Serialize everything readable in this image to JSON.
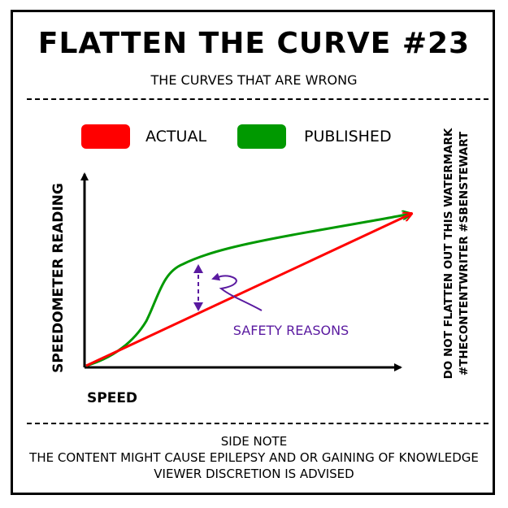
{
  "header": {
    "title": "FLATTEN THE CURVE #23",
    "subtitle": "THE CURVES THAT ARE WRONG"
  },
  "chart_data": {
    "type": "line",
    "xlabel": "SPEED",
    "ylabel": "SPEEDOMETER READING",
    "series": [
      {
        "name": "ACTUAL",
        "color": "#ff0000"
      },
      {
        "name": "PUBLISHED",
        "color": "#009900"
      }
    ],
    "annotations": [
      {
        "text": "SAFETY REASONS",
        "color": "#5a1aa0"
      }
    ],
    "legend_position": "top"
  },
  "watermark": {
    "line1": "DO NOT FLATTEN OUT THIS WATERMARK",
    "line2": "#THECONTENTWRITER #SBENSTEWART"
  },
  "footer": {
    "line1": "SIDE NOTE",
    "line2": "THE CONTENT MIGHT CAUSE EPILEPSY AND OR GAINING OF KNOWLEDGE",
    "line3": "VIEWER DISCRETION IS ADVISED"
  },
  "colors": {
    "actual": "#ff0000",
    "published": "#009900",
    "annotation": "#5a1aa0"
  }
}
